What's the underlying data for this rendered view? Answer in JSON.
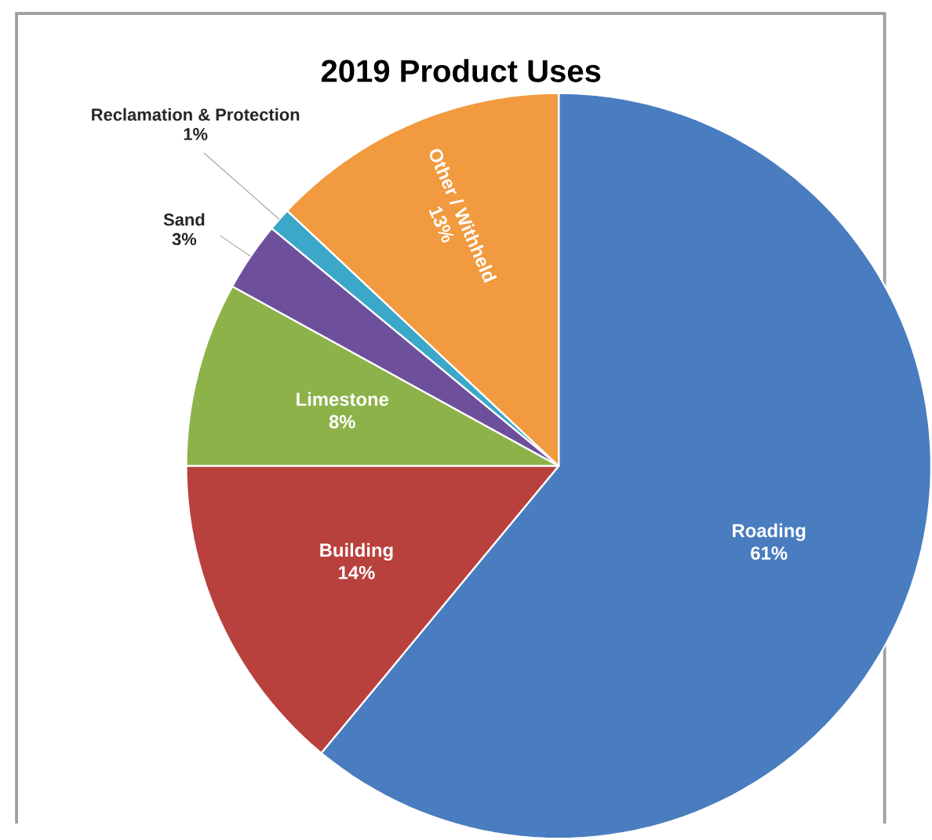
{
  "chart_data": {
    "type": "pie",
    "title": "2019 Product Uses",
    "categories": [
      "Roading",
      "Building",
      "Limestone",
      "Sand",
      "Reclamation & Protection",
      "Other / Withheld"
    ],
    "values": [
      61,
      14,
      8,
      3,
      1,
      13
    ],
    "value_labels": [
      "61%",
      "14%",
      "8%",
      "3%",
      "1%",
      "13%"
    ],
    "colors": [
      "#4a7dbf",
      "#b8413e",
      "#8db24a",
      "#6e4f9c",
      "#3ba7c9",
      "#f29a3f"
    ]
  }
}
